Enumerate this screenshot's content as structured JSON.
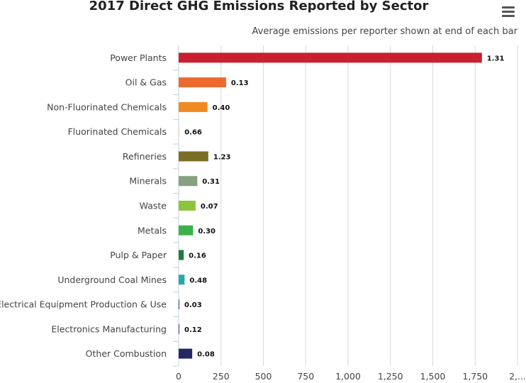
{
  "menu": {
    "icon": "hamburger-menu-icon"
  },
  "chart_data": {
    "type": "bar",
    "orientation": "horizontal",
    "title": "2017 Direct GHG Emissions Reported by Sector",
    "subtitle": "Average emissions per reporter shown at end of each bar",
    "xlim": [
      0,
      2000
    ],
    "x_ticks": [
      "0",
      "250",
      "500",
      "750",
      "1,000",
      "1,250",
      "1,500",
      "1,750",
      "2,..."
    ],
    "grid": true,
    "categories": [
      "Power Plants",
      "Oil & Gas",
      "Non-Fluorinated Chemicals",
      "Fluorinated Chemicals",
      "Refineries",
      "Minerals",
      "Waste",
      "Metals",
      "Pulp & Paper",
      "Underground Coal Mines",
      "Electrical Equipment Production & Use",
      "Electronics Manufacturing",
      "Other Combustion"
    ],
    "values": [
      1790,
      280,
      170,
      5,
      175,
      110,
      100,
      85,
      30,
      35,
      2,
      4,
      80
    ],
    "data_labels": [
      "1.31",
      "0.13",
      "0.40",
      "0.66",
      "1.23",
      "0.31",
      "0.07",
      "0.30",
      "0.16",
      "0.48",
      "0.03",
      "0.12",
      "0.08"
    ],
    "colors": [
      "#c8202f",
      "#ec6a2e",
      "#f08a24",
      "#f3e07a",
      "#7a6e24",
      "#87a080",
      "#8cc43c",
      "#3cb04a",
      "#1f7a3c",
      "#26aaa6",
      "#2a4f8e",
      "#5a3a8a",
      "#232864"
    ]
  }
}
